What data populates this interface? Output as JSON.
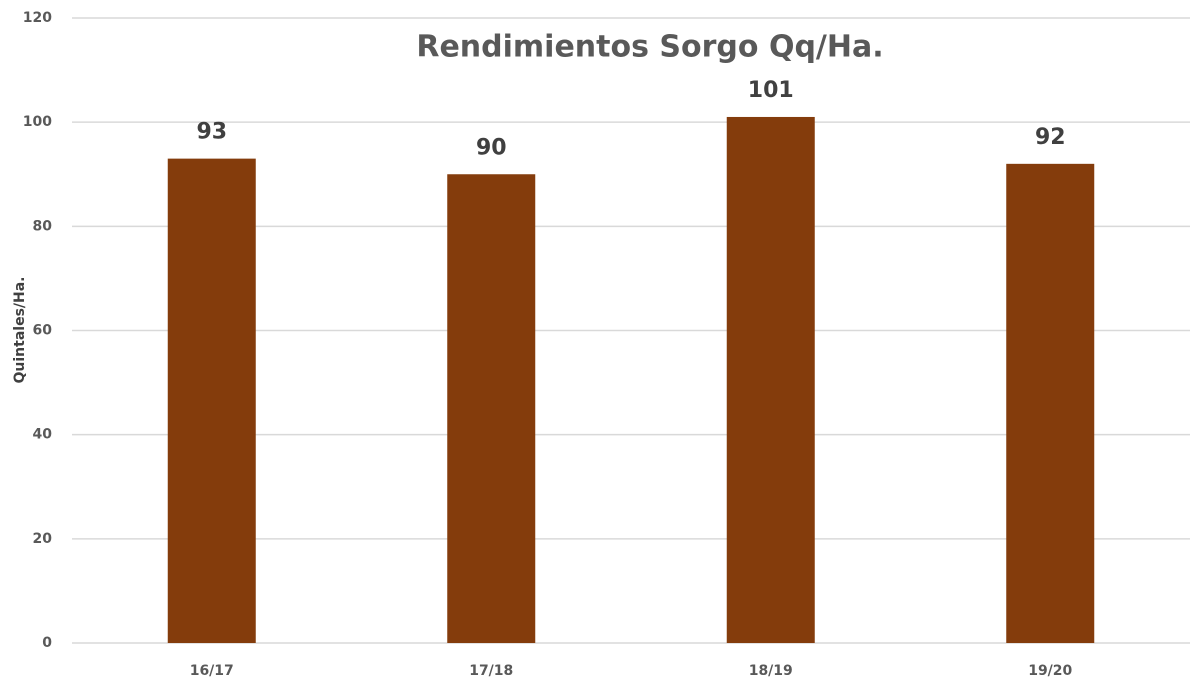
{
  "chart_data": {
    "type": "bar",
    "title": "Rendimientos Sorgo Qq/Ha.",
    "y_label": "Quintales/Ha.",
    "categories": [
      "16/17",
      "17/18",
      "18/19",
      "19/20"
    ],
    "values": [
      93,
      90,
      101,
      92
    ],
    "color": "#843c0c",
    "ylim": [
      0,
      120
    ],
    "yticks": [
      0,
      20,
      40,
      60,
      80,
      100,
      120
    ],
    "grid": true,
    "data_labels": true
  }
}
